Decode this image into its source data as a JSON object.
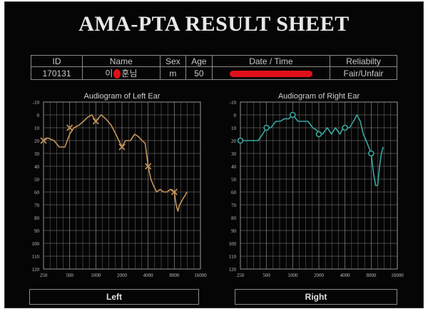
{
  "header": {
    "title": "AMA-PTA RESULT SHEET"
  },
  "info": {
    "headers": [
      "ID",
      "Name",
      "Sex",
      "Age",
      "Date / Time",
      "Reliabilty"
    ],
    "id": "170131",
    "name_left": "이",
    "name_right": "훈님",
    "sex": "m",
    "age": "50",
    "date_time": "",
    "reliability": "Fair/Unfair"
  },
  "footer": {
    "left_label": "Left",
    "right_label": "Right"
  },
  "chart_data": [
    {
      "type": "line",
      "title": "Audiogram of Left Ear",
      "color": "#c8955c",
      "marker": "x",
      "x_scale": "log",
      "y_inverted": true,
      "x_ticks": [
        "250",
        "500",
        "1000",
        "2000",
        "4000",
        "8000",
        "16000"
      ],
      "y_ticks": [
        "-10",
        "0",
        "10",
        "20",
        "30",
        "40",
        "50",
        "60",
        "70",
        "80",
        "90",
        "100",
        "110",
        "120"
      ],
      "ylim": [
        -10,
        120
      ],
      "grid": true,
      "markers": {
        "x": [
          250,
          500,
          1000,
          2000,
          4000,
          8000
        ],
        "y": [
          20,
          10,
          5,
          25,
          40,
          60
        ]
      },
      "trace": {
        "x": [
          250,
          280,
          330,
          380,
          440,
          500,
          560,
          640,
          720,
          800,
          900,
          1000,
          1150,
          1300,
          1500,
          1700,
          1900,
          2000,
          2200,
          2500,
          2800,
          3100,
          3400,
          3700,
          4000,
          4300,
          4600,
          5000,
          5500,
          6000,
          6600,
          7200,
          8000,
          8400,
          8800,
          9200,
          9600,
          10100,
          10600,
          11200
        ],
        "y": [
          20,
          18,
          20,
          25,
          25,
          15,
          10,
          8,
          5,
          2,
          0,
          5,
          0,
          3,
          8,
          15,
          22,
          25,
          20,
          20,
          15,
          17,
          20,
          22,
          40,
          50,
          55,
          60,
          58,
          60,
          60,
          58,
          60,
          70,
          75,
          70,
          68,
          65,
          63,
          60
        ]
      }
    },
    {
      "type": "line",
      "title": "Audiogram of Right Ear",
      "color": "#3aa7a0",
      "marker": "o",
      "x_scale": "log",
      "y_inverted": true,
      "x_ticks": [
        "250",
        "500",
        "1000",
        "2000",
        "4000",
        "8000",
        "16000"
      ],
      "y_ticks": [
        "-10",
        "0",
        "10",
        "20",
        "30",
        "40",
        "50",
        "60",
        "70",
        "80",
        "90",
        "100",
        "110",
        "120"
      ],
      "ylim": [
        -10,
        120
      ],
      "grid": true,
      "markers": {
        "x": [
          250,
          500,
          1000,
          2000,
          4000,
          8000
        ],
        "y": [
          20,
          10,
          0,
          15,
          10,
          30
        ]
      },
      "trace": {
        "x": [
          250,
          300,
          350,
          400,
          450,
          500,
          560,
          640,
          720,
          800,
          900,
          1000,
          1150,
          1300,
          1500,
          1700,
          1900,
          2000,
          2200,
          2500,
          2800,
          3100,
          3500,
          3800,
          4000,
          4500,
          5000,
          5500,
          6000,
          6500,
          7000,
          7500,
          8000,
          8500,
          9000,
          9500,
          10000,
          10500,
          11000
        ],
        "y": [
          20,
          20,
          20,
          20,
          15,
          10,
          10,
          5,
          5,
          3,
          3,
          0,
          5,
          5,
          5,
          10,
          12,
          15,
          15,
          10,
          15,
          10,
          15,
          10,
          10,
          10,
          5,
          0,
          5,
          15,
          20,
          25,
          30,
          45,
          55,
          55,
          40,
          30,
          25
        ]
      }
    }
  ]
}
